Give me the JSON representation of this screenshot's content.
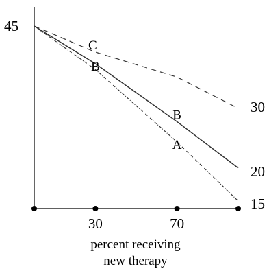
{
  "chart_data": {
    "type": "line",
    "title": "",
    "xlabel_lines": [
      "percent receiving",
      "new therapy"
    ],
    "ylabel": "",
    "xlim": [
      0,
      100
    ],
    "ylim": [
      0,
      45
    ],
    "x_ticks": [
      0,
      30,
      70,
      100
    ],
    "x_tick_labels": [
      "",
      "30",
      "70",
      ""
    ],
    "y_ticks": [
      45
    ],
    "y_tick_labels": [
      "45"
    ],
    "grid": false,
    "series": [
      {
        "name": "30",
        "style": "dashed",
        "x": [
          0,
          30,
          70,
          100
        ],
        "y": [
          45,
          40.5,
          36.2,
          30.8
        ]
      },
      {
        "name": "20",
        "style": "solid",
        "x": [
          0,
          30,
          70,
          100
        ],
        "y": [
          45,
          38.5,
          28.5,
          20.5
        ]
      },
      {
        "name": "15",
        "style": "dashdot",
        "x": [
          0,
          30,
          70,
          100
        ],
        "y": [
          45,
          37.5,
          25,
          14.8
        ]
      }
    ],
    "point_labels": [
      {
        "text": "C",
        "x": 30,
        "series": "30"
      },
      {
        "text": "B",
        "x": 30,
        "series": "20"
      },
      {
        "text": "B",
        "x": 70,
        "series": "20"
      },
      {
        "text": "A",
        "x": 70,
        "series": "15"
      }
    ],
    "colors": {
      "line": "#333333",
      "axis": "#000000",
      "background": "#ffffff"
    }
  }
}
